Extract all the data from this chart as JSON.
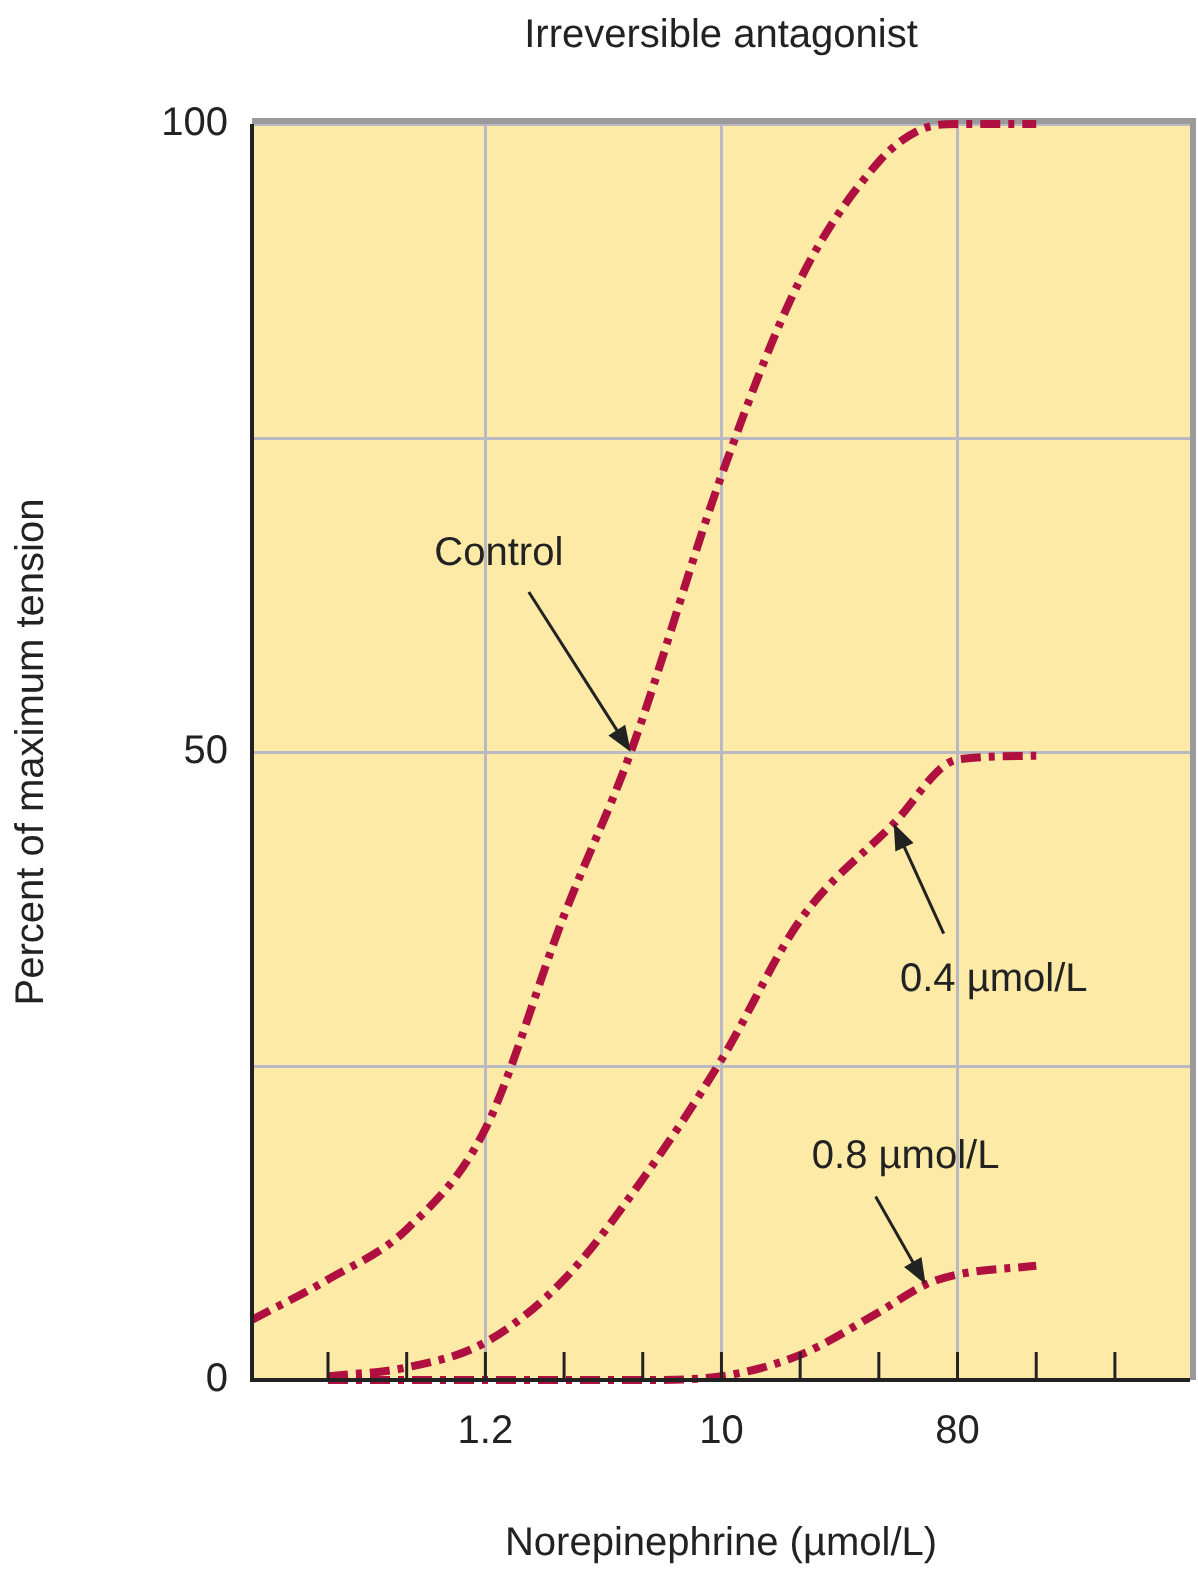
{
  "chart_data": {
    "type": "line",
    "title": "Irreversible antagonist",
    "xlabel": "Norepinephrine (µmol/L)",
    "ylabel": "Percent of maximum tension",
    "log": "x",
    "xlim": [
      0.16,
      620
    ],
    "ylim": [
      0,
      100
    ],
    "xticks": [
      {
        "value": 0.3125,
        "label": null
      },
      {
        "value": 0.625,
        "label": null
      },
      {
        "value": 1.25,
        "label": "1.2"
      },
      {
        "value": 2.5,
        "label": null
      },
      {
        "value": 5,
        "label": null
      },
      {
        "value": 10,
        "label": "10"
      },
      {
        "value": 20,
        "label": null
      },
      {
        "value": 40,
        "label": null
      },
      {
        "value": 80,
        "label": "80"
      },
      {
        "value": 160,
        "label": null
      },
      {
        "value": 320,
        "label": null
      }
    ],
    "yticks": [
      0,
      {
        "value": 25,
        "label": null
      },
      50,
      {
        "value": 75,
        "label": null
      },
      100
    ],
    "grid": true,
    "legend": false,
    "marker": "none",
    "line_style": "dashed",
    "series": [
      {
        "color": "#b0103f",
        "x": [
          0.16,
          0.3125,
          0.625,
          1.25,
          2.5,
          4.5,
          10,
          20,
          40,
          57,
          80,
          160
        ],
        "values": [
          4.8,
          8,
          12,
          20,
          37,
          50,
          72,
          87.6,
          97,
          99.5,
          100,
          100
        ]
      },
      {
        "color": "#b0103f",
        "x": [
          0.3125,
          0.625,
          1.25,
          2.5,
          5,
          10,
          20,
          45.6,
          80,
          160
        ],
        "values": [
          0.3,
          1,
          3,
          8,
          16,
          25.5,
          36.6,
          44.3,
          49.4,
          49.7
        ]
      },
      {
        "color": "#b0103f",
        "x": [
          0.3125,
          1.25,
          5,
          10,
          20,
          40,
          60.4,
          80,
          160
        ],
        "values": [
          0,
          0,
          0,
          0.3,
          2,
          5.4,
          7.6,
          8.4,
          9.1
        ]
      }
    ],
    "annotations": [
      {
        "text": "Control",
        "x": 4.5,
        "y": 50
      },
      {
        "text": "0.4 µmol/L",
        "x": 45.6,
        "y": 44.3
      },
      {
        "text": "0.8 µmol/L",
        "x": 60.4,
        "y": 7.6
      }
    ]
  }
}
